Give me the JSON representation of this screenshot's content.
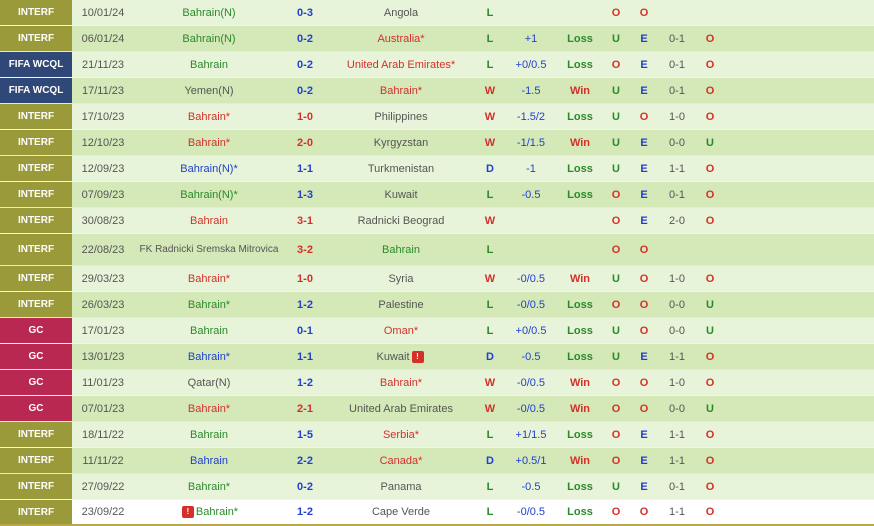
{
  "colors": {
    "olive": "#9a9a3a",
    "navy": "#304878",
    "crimson": "#b82850",
    "green": "#2a8a2a",
    "red": "#d4302a",
    "blue": "#2040d0",
    "gray": "#555",
    "odd_row": "#e8f4d9",
    "even_row": "#d4e8b8"
  },
  "rows": [
    {
      "comp": "INTERF",
      "comp_bg": "olive",
      "date": "10/01/24",
      "home": "Bahrain(N)",
      "home_c": "green",
      "score": "0-3",
      "score_c": "blue",
      "away": "Angola",
      "away_c": "gray",
      "res": "L",
      "res_c": "green",
      "hdp": "",
      "hdp_c": "",
      "bet": "",
      "bet_c": "",
      "ou1": "O",
      "ou1_c": "red",
      "ou2": "O",
      "ou2_c": "red",
      "ht": "",
      "ou3": "",
      "ou3_c": ""
    },
    {
      "comp": "INTERF",
      "comp_bg": "olive",
      "date": "06/01/24",
      "home": "Bahrain(N)",
      "home_c": "green",
      "score": "0-2",
      "score_c": "blue",
      "away": "Australia*",
      "away_c": "red",
      "res": "L",
      "res_c": "green",
      "hdp": "+1",
      "hdp_c": "blue",
      "bet": "Loss",
      "bet_c": "green",
      "ou1": "U",
      "ou1_c": "green",
      "ou2": "E",
      "ou2_c": "blue",
      "ht": "0-1",
      "ou3": "O",
      "ou3_c": "red"
    },
    {
      "comp": "FIFA WCQL",
      "comp_bg": "navy",
      "date": "21/11/23",
      "home": "Bahrain",
      "home_c": "green",
      "score": "0-2",
      "score_c": "blue",
      "away": "United Arab Emirates*",
      "away_c": "red",
      "res": "L",
      "res_c": "green",
      "hdp": "+0/0.5",
      "hdp_c": "blue",
      "bet": "Loss",
      "bet_c": "green",
      "ou1": "O",
      "ou1_c": "red",
      "ou2": "E",
      "ou2_c": "blue",
      "ht": "0-1",
      "ou3": "O",
      "ou3_c": "red"
    },
    {
      "comp": "FIFA WCQL",
      "comp_bg": "navy",
      "date": "17/11/23",
      "home": "Yemen(N)",
      "home_c": "gray",
      "score": "0-2",
      "score_c": "blue",
      "away": "Bahrain*",
      "away_c": "red",
      "res": "W",
      "res_c": "red",
      "hdp": "-1.5",
      "hdp_c": "blue",
      "bet": "Win",
      "bet_c": "red",
      "ou1": "U",
      "ou1_c": "green",
      "ou2": "E",
      "ou2_c": "blue",
      "ht": "0-1",
      "ou3": "O",
      "ou3_c": "red"
    },
    {
      "comp": "INTERF",
      "comp_bg": "olive",
      "date": "17/10/23",
      "home": "Bahrain*",
      "home_c": "red",
      "score": "1-0",
      "score_c": "red",
      "away": "Philippines",
      "away_c": "gray",
      "res": "W",
      "res_c": "red",
      "hdp": "-1.5/2",
      "hdp_c": "blue",
      "bet": "Loss",
      "bet_c": "green",
      "ou1": "U",
      "ou1_c": "green",
      "ou2": "O",
      "ou2_c": "red",
      "ht": "1-0",
      "ou3": "O",
      "ou3_c": "red"
    },
    {
      "comp": "INTERF",
      "comp_bg": "olive",
      "date": "12/10/23",
      "home": "Bahrain*",
      "home_c": "red",
      "score": "2-0",
      "score_c": "red",
      "away": "Kyrgyzstan",
      "away_c": "gray",
      "res": "W",
      "res_c": "red",
      "hdp": "-1/1.5",
      "hdp_c": "blue",
      "bet": "Win",
      "bet_c": "red",
      "ou1": "U",
      "ou1_c": "green",
      "ou2": "E",
      "ou2_c": "blue",
      "ht": "0-0",
      "ou3": "U",
      "ou3_c": "green"
    },
    {
      "comp": "INTERF",
      "comp_bg": "olive",
      "date": "12/09/23",
      "home": "Bahrain(N)*",
      "home_c": "blue",
      "score": "1-1",
      "score_c": "blue",
      "away": "Turkmenistan",
      "away_c": "gray",
      "res": "D",
      "res_c": "blue",
      "hdp": "-1",
      "hdp_c": "blue",
      "bet": "Loss",
      "bet_c": "green",
      "ou1": "U",
      "ou1_c": "green",
      "ou2": "E",
      "ou2_c": "blue",
      "ht": "1-1",
      "ou3": "O",
      "ou3_c": "red"
    },
    {
      "comp": "INTERF",
      "comp_bg": "olive",
      "date": "07/09/23",
      "home": "Bahrain(N)*",
      "home_c": "green",
      "score": "1-3",
      "score_c": "blue",
      "away": "Kuwait",
      "away_c": "gray",
      "res": "L",
      "res_c": "green",
      "hdp": "-0.5",
      "hdp_c": "blue",
      "bet": "Loss",
      "bet_c": "green",
      "ou1": "O",
      "ou1_c": "red",
      "ou2": "E",
      "ou2_c": "blue",
      "ht": "0-1",
      "ou3": "O",
      "ou3_c": "red"
    },
    {
      "comp": "INTERF",
      "comp_bg": "olive",
      "date": "30/08/23",
      "home": "Bahrain",
      "home_c": "red",
      "score": "3-1",
      "score_c": "red",
      "away": "Radnicki Beograd",
      "away_c": "gray",
      "res": "W",
      "res_c": "red",
      "hdp": "",
      "hdp_c": "",
      "bet": "",
      "bet_c": "",
      "ou1": "O",
      "ou1_c": "red",
      "ou2": "E",
      "ou2_c": "blue",
      "ht": "2-0",
      "ou3": "O",
      "ou3_c": "red"
    },
    {
      "comp": "INTERF",
      "comp_bg": "olive",
      "date": "22/08/23",
      "home": "FK Radnicki Sremska Mitrovica",
      "home_c": "gray",
      "score": "3-2",
      "score_c": "red",
      "away": "Bahrain",
      "away_c": "green",
      "res": "L",
      "res_c": "green",
      "hdp": "",
      "hdp_c": "",
      "bet": "",
      "bet_c": "",
      "ou1": "O",
      "ou1_c": "red",
      "ou2": "O",
      "ou2_c": "red",
      "ht": "",
      "ou3": "",
      "ou3_c": "",
      "tall": true
    },
    {
      "comp": "INTERF",
      "comp_bg": "olive",
      "date": "29/03/23",
      "home": "Bahrain*",
      "home_c": "red",
      "score": "1-0",
      "score_c": "red",
      "away": "Syria",
      "away_c": "gray",
      "res": "W",
      "res_c": "red",
      "hdp": "-0/0.5",
      "hdp_c": "blue",
      "bet": "Win",
      "bet_c": "red",
      "ou1": "U",
      "ou1_c": "green",
      "ou2": "O",
      "ou2_c": "red",
      "ht": "1-0",
      "ou3": "O",
      "ou3_c": "red"
    },
    {
      "comp": "INTERF",
      "comp_bg": "olive",
      "date": "26/03/23",
      "home": "Bahrain*",
      "home_c": "green",
      "score": "1-2",
      "score_c": "blue",
      "away": "Palestine",
      "away_c": "gray",
      "res": "L",
      "res_c": "green",
      "hdp": "-0/0.5",
      "hdp_c": "blue",
      "bet": "Loss",
      "bet_c": "green",
      "ou1": "O",
      "ou1_c": "red",
      "ou2": "O",
      "ou2_c": "red",
      "ht": "0-0",
      "ou3": "U",
      "ou3_c": "green"
    },
    {
      "comp": "GC",
      "comp_bg": "crimson",
      "date": "17/01/23",
      "home": "Bahrain",
      "home_c": "green",
      "score": "0-1",
      "score_c": "blue",
      "away": "Oman*",
      "away_c": "red",
      "res": "L",
      "res_c": "green",
      "hdp": "+0/0.5",
      "hdp_c": "blue",
      "bet": "Loss",
      "bet_c": "green",
      "ou1": "U",
      "ou1_c": "green",
      "ou2": "O",
      "ou2_c": "red",
      "ht": "0-0",
      "ou3": "U",
      "ou3_c": "green"
    },
    {
      "comp": "GC",
      "comp_bg": "crimson",
      "date": "13/01/23",
      "home": "Bahrain*",
      "home_c": "blue",
      "score": "1-1",
      "score_c": "blue",
      "away": "Kuwait",
      "away_c": "gray",
      "away_alert": true,
      "res": "D",
      "res_c": "blue",
      "hdp": "-0.5",
      "hdp_c": "blue",
      "bet": "Loss",
      "bet_c": "green",
      "ou1": "U",
      "ou1_c": "green",
      "ou2": "E",
      "ou2_c": "blue",
      "ht": "1-1",
      "ou3": "O",
      "ou3_c": "red"
    },
    {
      "comp": "GC",
      "comp_bg": "crimson",
      "date": "11/01/23",
      "home": "Qatar(N)",
      "home_c": "gray",
      "score": "1-2",
      "score_c": "blue",
      "away": "Bahrain*",
      "away_c": "red",
      "res": "W",
      "res_c": "red",
      "hdp": "-0/0.5",
      "hdp_c": "blue",
      "bet": "Win",
      "bet_c": "red",
      "ou1": "O",
      "ou1_c": "red",
      "ou2": "O",
      "ou2_c": "red",
      "ht": "1-0",
      "ou3": "O",
      "ou3_c": "red"
    },
    {
      "comp": "GC",
      "comp_bg": "crimson",
      "date": "07/01/23",
      "home": "Bahrain*",
      "home_c": "red",
      "score": "2-1",
      "score_c": "red",
      "away": "United Arab Emirates",
      "away_c": "gray",
      "res": "W",
      "res_c": "red",
      "hdp": "-0/0.5",
      "hdp_c": "blue",
      "bet": "Win",
      "bet_c": "red",
      "ou1": "O",
      "ou1_c": "red",
      "ou2": "O",
      "ou2_c": "red",
      "ht": "0-0",
      "ou3": "U",
      "ou3_c": "green"
    },
    {
      "comp": "INTERF",
      "comp_bg": "olive",
      "date": "18/11/22",
      "home": "Bahrain",
      "home_c": "green",
      "score": "1-5",
      "score_c": "blue",
      "away": "Serbia*",
      "away_c": "red",
      "res": "L",
      "res_c": "green",
      "hdp": "+1/1.5",
      "hdp_c": "blue",
      "bet": "Loss",
      "bet_c": "green",
      "ou1": "O",
      "ou1_c": "red",
      "ou2": "E",
      "ou2_c": "blue",
      "ht": "1-1",
      "ou3": "O",
      "ou3_c": "red"
    },
    {
      "comp": "INTERF",
      "comp_bg": "olive",
      "date": "11/11/22",
      "home": "Bahrain",
      "home_c": "blue",
      "score": "2-2",
      "score_c": "blue",
      "away": "Canada*",
      "away_c": "red",
      "res": "D",
      "res_c": "blue",
      "hdp": "+0.5/1",
      "hdp_c": "blue",
      "bet": "Win",
      "bet_c": "red",
      "ou1": "O",
      "ou1_c": "red",
      "ou2": "E",
      "ou2_c": "blue",
      "ht": "1-1",
      "ou3": "O",
      "ou3_c": "red"
    },
    {
      "comp": "INTERF",
      "comp_bg": "olive",
      "date": "27/09/22",
      "home": "Bahrain*",
      "home_c": "green",
      "score": "0-2",
      "score_c": "blue",
      "away": "Panama",
      "away_c": "gray",
      "res": "L",
      "res_c": "green",
      "hdp": "-0.5",
      "hdp_c": "blue",
      "bet": "Loss",
      "bet_c": "green",
      "ou1": "U",
      "ou1_c": "green",
      "ou2": "E",
      "ou2_c": "blue",
      "ht": "0-1",
      "ou3": "O",
      "ou3_c": "red"
    },
    {
      "comp": "INTERF",
      "comp_bg": "olive",
      "date": "23/09/22",
      "home": "Bahrain*",
      "home_c": "green",
      "home_alert": true,
      "score": "1-2",
      "score_c": "blue",
      "away": "Cape Verde",
      "away_c": "gray",
      "res": "L",
      "res_c": "green",
      "hdp": "-0/0.5",
      "hdp_c": "blue",
      "bet": "Loss",
      "bet_c": "green",
      "ou1": "O",
      "ou1_c": "red",
      "ou2": "O",
      "ou2_c": "red",
      "ht": "1-1",
      "ou3": "O",
      "ou3_c": "red",
      "last": true
    }
  ]
}
